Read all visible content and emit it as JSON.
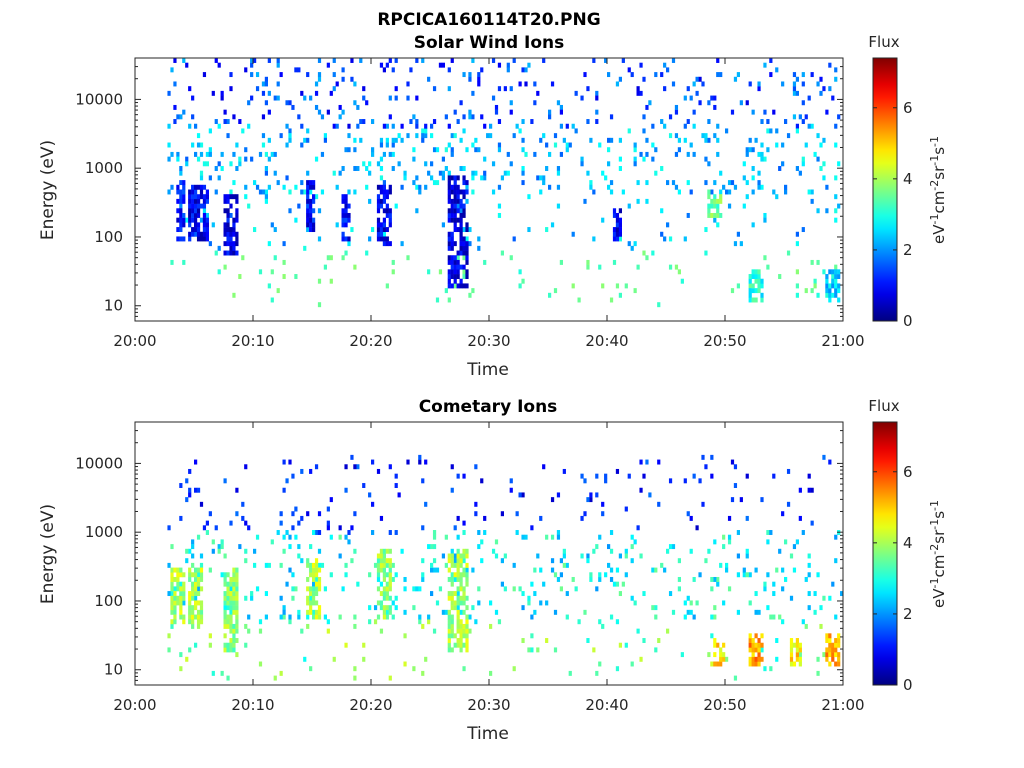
{
  "figure": {
    "filename": "RPCICA160114T20.PNG"
  },
  "chart_data": [
    {
      "type": "heatmap",
      "title": "Solar Wind Ions",
      "xlabel": "Time",
      "ylabel": "Energy (eV)",
      "x_ticks": [
        "20:00",
        "20:10",
        "20:20",
        "20:30",
        "20:40",
        "20:50",
        "21:00"
      ],
      "x_range": [
        "20:00",
        "21:00"
      ],
      "y_ticks": [
        "10",
        "100",
        "1000",
        "10000"
      ],
      "y_ticks_values": [
        10,
        100,
        1000,
        10000
      ],
      "y_scale": "log",
      "ylim": [
        6,
        40000
      ],
      "colorbar": {
        "title": "Flux",
        "label": "eV⁻¹cm⁻²sr⁻¹s⁻¹",
        "label_parts": [
          {
            "t": "eV",
            "sup": false
          },
          {
            "t": "-1",
            "sup": true
          },
          {
            "t": "cm",
            "sup": false
          },
          {
            "t": "-2",
            "sup": true
          },
          {
            "t": "sr",
            "sup": false
          },
          {
            "t": "-1",
            "sup": true
          },
          {
            "t": "s",
            "sup": false
          },
          {
            "t": "-1",
            "sup": true
          }
        ],
        "ticks": [
          "0",
          "2",
          "4",
          "6"
        ],
        "range": [
          0,
          7.4
        ],
        "colormap": "jet"
      },
      "dominant_features": [
        {
          "minute_start": 3.5,
          "minute_end": 4.0,
          "energy_low": 100,
          "energy_high": 600,
          "level": 1.0
        },
        {
          "minute_start": 4.5,
          "minute_end": 6.0,
          "energy_low": 100,
          "energy_high": 500,
          "level": 0.8
        },
        {
          "minute_start": 7.5,
          "minute_end": 8.5,
          "energy_low": 60,
          "energy_high": 400,
          "level": 0.7
        },
        {
          "minute_start": 14.5,
          "minute_end": 15.0,
          "energy_low": 120,
          "energy_high": 600,
          "level": 1.0
        },
        {
          "minute_start": 17.5,
          "minute_end": 18.0,
          "energy_low": 100,
          "energy_high": 400,
          "level": 1.0
        },
        {
          "minute_start": 20.5,
          "minute_end": 21.5,
          "energy_low": 80,
          "energy_high": 500,
          "level": 0.8
        },
        {
          "minute_start": 26.5,
          "minute_end": 28.0,
          "energy_low": 20,
          "energy_high": 700,
          "level": 0.7
        },
        {
          "minute_start": 40.5,
          "minute_end": 41.0,
          "energy_low": 100,
          "energy_high": 250,
          "level": 0.8
        },
        {
          "minute_start": 48.5,
          "minute_end": 49.5,
          "energy_low": 200,
          "energy_high": 500,
          "level": 3.5
        },
        {
          "minute_start": 52.0,
          "minute_end": 53.0,
          "energy_low": 13,
          "energy_high": 30,
          "level": 3.0
        },
        {
          "minute_start": 58.5,
          "minute_end": 59.5,
          "energy_low": 13,
          "energy_high": 30,
          "level": 2.5
        }
      ]
    },
    {
      "type": "heatmap",
      "title": "Cometary Ions",
      "xlabel": "Time",
      "ylabel": "Energy (eV)",
      "x_ticks": [
        "20:00",
        "20:10",
        "20:20",
        "20:30",
        "20:40",
        "20:50",
        "21:00"
      ],
      "x_range": [
        "20:00",
        "21:00"
      ],
      "y_ticks": [
        "10",
        "100",
        "1000",
        "10000"
      ],
      "y_ticks_values": [
        10,
        100,
        1000,
        10000
      ],
      "y_scale": "log",
      "ylim": [
        6,
        40000
      ],
      "colorbar": {
        "title": "Flux",
        "label": "eV⁻¹cm⁻²sr⁻¹s⁻¹",
        "label_parts": [
          {
            "t": "eV",
            "sup": false
          },
          {
            "t": "-1",
            "sup": true
          },
          {
            "t": "cm",
            "sup": false
          },
          {
            "t": "-2",
            "sup": true
          },
          {
            "t": "sr",
            "sup": false
          },
          {
            "t": "-1",
            "sup": true
          },
          {
            "t": "s",
            "sup": false
          },
          {
            "t": "-1",
            "sup": true
          }
        ],
        "ticks": [
          "0",
          "2",
          "4",
          "6"
        ],
        "range": [
          0,
          7.4
        ],
        "colormap": "jet"
      },
      "dominant_features": [
        {
          "minute_start": 3.0,
          "minute_end": 4.0,
          "energy_low": 50,
          "energy_high": 300,
          "level": 4.0
        },
        {
          "minute_start": 4.5,
          "minute_end": 5.5,
          "energy_low": 40,
          "energy_high": 300,
          "level": 4.0
        },
        {
          "minute_start": 7.5,
          "minute_end": 8.5,
          "energy_low": 20,
          "energy_high": 300,
          "level": 3.8
        },
        {
          "minute_start": 14.5,
          "minute_end": 15.5,
          "energy_low": 60,
          "energy_high": 400,
          "level": 4.0
        },
        {
          "minute_start": 20.5,
          "minute_end": 21.5,
          "energy_low": 60,
          "energy_high": 500,
          "level": 3.8
        },
        {
          "minute_start": 26.5,
          "minute_end": 28.0,
          "energy_low": 20,
          "energy_high": 500,
          "level": 4.0
        },
        {
          "minute_start": 49.0,
          "minute_end": 49.8,
          "energy_low": 12,
          "energy_high": 25,
          "level": 4.8
        },
        {
          "minute_start": 52.0,
          "minute_end": 53.0,
          "energy_low": 12,
          "energy_high": 30,
          "level": 5.3
        },
        {
          "minute_start": 55.5,
          "minute_end": 56.3,
          "energy_low": 12,
          "energy_high": 25,
          "level": 4.8
        },
        {
          "minute_start": 58.5,
          "minute_end": 59.5,
          "energy_low": 12,
          "energy_high": 30,
          "level": 5.2
        }
      ]
    }
  ]
}
